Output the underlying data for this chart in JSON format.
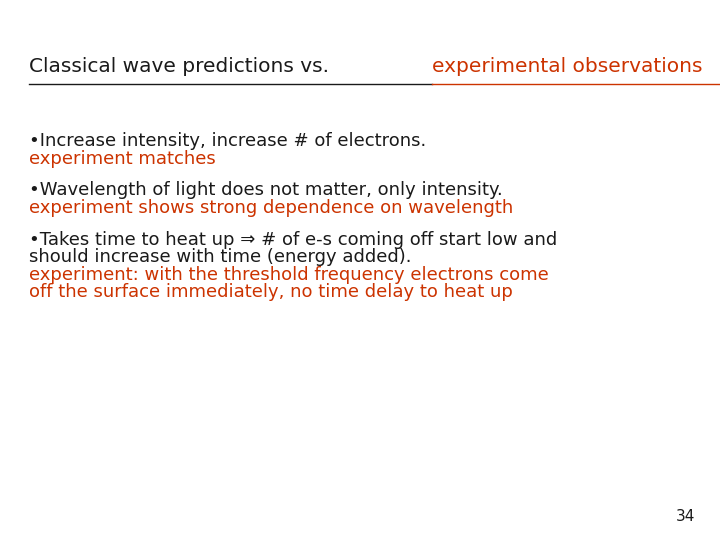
{
  "background_color": "#ffffff",
  "title_black": "Classical wave predictions vs.  ",
  "title_red": "experimental observations",
  "title_fontsize": 14.5,
  "bullet1_black": "•Increase intensity, increase # of electrons.",
  "bullet1_red": "experiment matches",
  "bullet2_black": "•Wavelength of light does not matter, only intensity.",
  "bullet2_red": "experiment shows strong dependence on wavelength",
  "bullet3_black_line1": "•Takes time to heat up ⇒ # of e-s coming off start low and",
  "bullet3_black_line2": "should increase with time (energy added).",
  "bullet3_red_line1": "experiment: with the threshold frequency electrons come",
  "bullet3_red_line2": "off the surface immediately, no time delay to heat up",
  "page_number": "34",
  "black_color": "#1a1a1a",
  "red_color": "#cc3300",
  "font_family": "DejaVu Sans",
  "font_size_body": 13.0,
  "font_size_page": 11
}
